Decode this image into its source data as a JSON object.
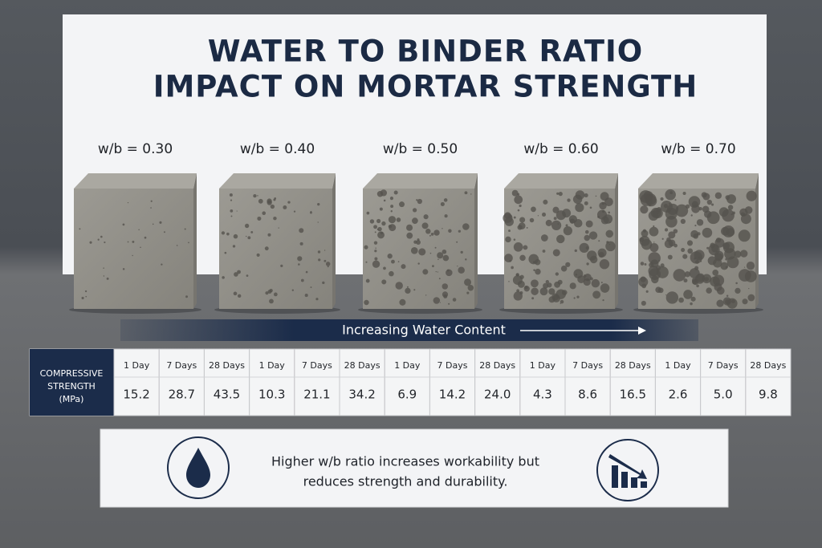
{
  "title_lines": [
    "WATER TO BINDER RATIO",
    "IMPACT ON MORTAR STRENGTH"
  ],
  "ratios": [
    "w/b = 0.30",
    "w/b = 0.40",
    "w/b = 0.50",
    "w/b = 0.60",
    "w/b = 0.70"
  ],
  "arrow_label": "Increasing Water Content",
  "table": {
    "header": [
      "COMPRESSIVE",
      "STRENGTH",
      "(MPa)"
    ],
    "groups": [
      {
        "ages": [
          "1 Day",
          "7 Days",
          "28 Days"
        ],
        "values": [
          "15.2",
          "28.7",
          "43.5"
        ]
      },
      {
        "ages": [
          "1 Day",
          "7 Days",
          "28 Days"
        ],
        "values": [
          "10.3",
          "21.1",
          "34.2"
        ]
      },
      {
        "ages": [
          "1 Day",
          "7 Days",
          "28 Days"
        ],
        "values": [
          "6.9",
          "14.2",
          "24.0"
        ]
      },
      {
        "ages": [
          "1 Day",
          "7 Days",
          "28 Days"
        ],
        "values": [
          "4.3",
          "8.6",
          "16.5"
        ]
      },
      {
        "ages": [
          "1 Day",
          "7 Days",
          "28 Days"
        ],
        "values": [
          "2.6",
          "5.0",
          "9.8"
        ]
      }
    ]
  },
  "note_lines": [
    "Higher w/b ratio increases workability but",
    "reduces strength and durability."
  ]
}
